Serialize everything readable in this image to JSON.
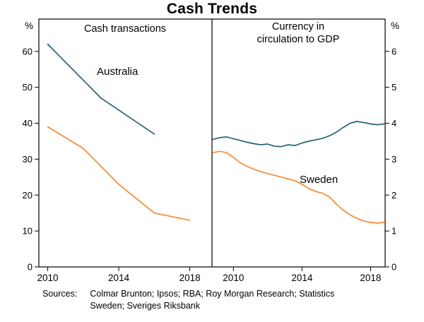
{
  "header": {
    "title": "Cash Trends"
  },
  "panels": {
    "left": {
      "title": "Cash transactions",
      "unit": "%"
    },
    "right": {
      "title_line1": "Currency in",
      "title_line2": "circulation to GDP",
      "unit": "%"
    }
  },
  "series_labels": {
    "australia": "Australia",
    "sweden": "Sweden"
  },
  "colors": {
    "australia": "#2a6274",
    "sweden": "#f68b33",
    "axis": "#000000"
  },
  "footer": {
    "sources_label": "Sources:",
    "line1": "Colmar Brunton; Ipsos; RBA; Roy Morgan Research; Statistics",
    "line2": "Sweden; Sveriges Riksbank"
  },
  "chart_data": [
    {
      "type": "line",
      "panel": "left",
      "title": "Cash transactions",
      "xlabel": "",
      "ylabel": "%",
      "grid": false,
      "legend": "inline-labels",
      "ylim": [
        0,
        69
      ],
      "yticks": [
        0,
        10,
        20,
        30,
        40,
        50,
        60
      ],
      "xlim": [
        2009.5,
        2019.25
      ],
      "xticks": [
        2010,
        2014,
        2018
      ],
      "series": [
        {
          "name": "Australia",
          "color": "#2a6274",
          "x": [
            2010,
            2013,
            2016
          ],
          "y": [
            62,
            47,
            37
          ]
        },
        {
          "name": "Sweden",
          "color": "#f68b33",
          "x": [
            2010,
            2012,
            2014,
            2016,
            2018
          ],
          "y": [
            39,
            33,
            23,
            15,
            13
          ]
        }
      ]
    },
    {
      "type": "line",
      "panel": "right",
      "title": "Currency in circulation to GDP",
      "xlabel": "",
      "ylabel": "%",
      "grid": false,
      "legend": "inline-labels",
      "ylim": [
        0,
        6.9
      ],
      "yticks": [
        0,
        1,
        2,
        3,
        4,
        5,
        6
      ],
      "xlim": [
        2008.75,
        2018.85
      ],
      "xticks": [
        2010,
        2014,
        2018
      ],
      "series": [
        {
          "name": "Australia",
          "color": "#2a6274",
          "x": [
            2008.8,
            2009.2,
            2009.6,
            2010.0,
            2010.4,
            2010.8,
            2011.2,
            2011.6,
            2012.0,
            2012.4,
            2012.8,
            2013.2,
            2013.6,
            2014.0,
            2014.4,
            2014.8,
            2015.2,
            2015.6,
            2016.0,
            2016.4,
            2016.8,
            2017.2,
            2017.6,
            2018.0,
            2018.4,
            2018.8
          ],
          "y": [
            3.55,
            3.6,
            3.62,
            3.57,
            3.52,
            3.47,
            3.43,
            3.4,
            3.42,
            3.36,
            3.35,
            3.4,
            3.38,
            3.45,
            3.5,
            3.54,
            3.58,
            3.65,
            3.75,
            3.88,
            4.0,
            4.05,
            4.02,
            3.98,
            3.96,
            3.98
          ]
        },
        {
          "name": "Sweden",
          "color": "#f68b33",
          "x": [
            2008.8,
            2009.2,
            2009.6,
            2010.0,
            2010.4,
            2010.8,
            2011.2,
            2011.6,
            2012.0,
            2012.4,
            2012.8,
            2013.2,
            2013.6,
            2014.0,
            2014.4,
            2014.8,
            2015.2,
            2015.6,
            2016.0,
            2016.4,
            2016.8,
            2017.2,
            2017.6,
            2018.0,
            2018.4,
            2018.8
          ],
          "y": [
            3.18,
            3.22,
            3.18,
            3.05,
            2.9,
            2.8,
            2.72,
            2.65,
            2.6,
            2.55,
            2.5,
            2.45,
            2.4,
            2.3,
            2.18,
            2.1,
            2.05,
            1.95,
            1.75,
            1.58,
            1.45,
            1.35,
            1.28,
            1.24,
            1.22,
            1.24
          ]
        }
      ]
    }
  ]
}
